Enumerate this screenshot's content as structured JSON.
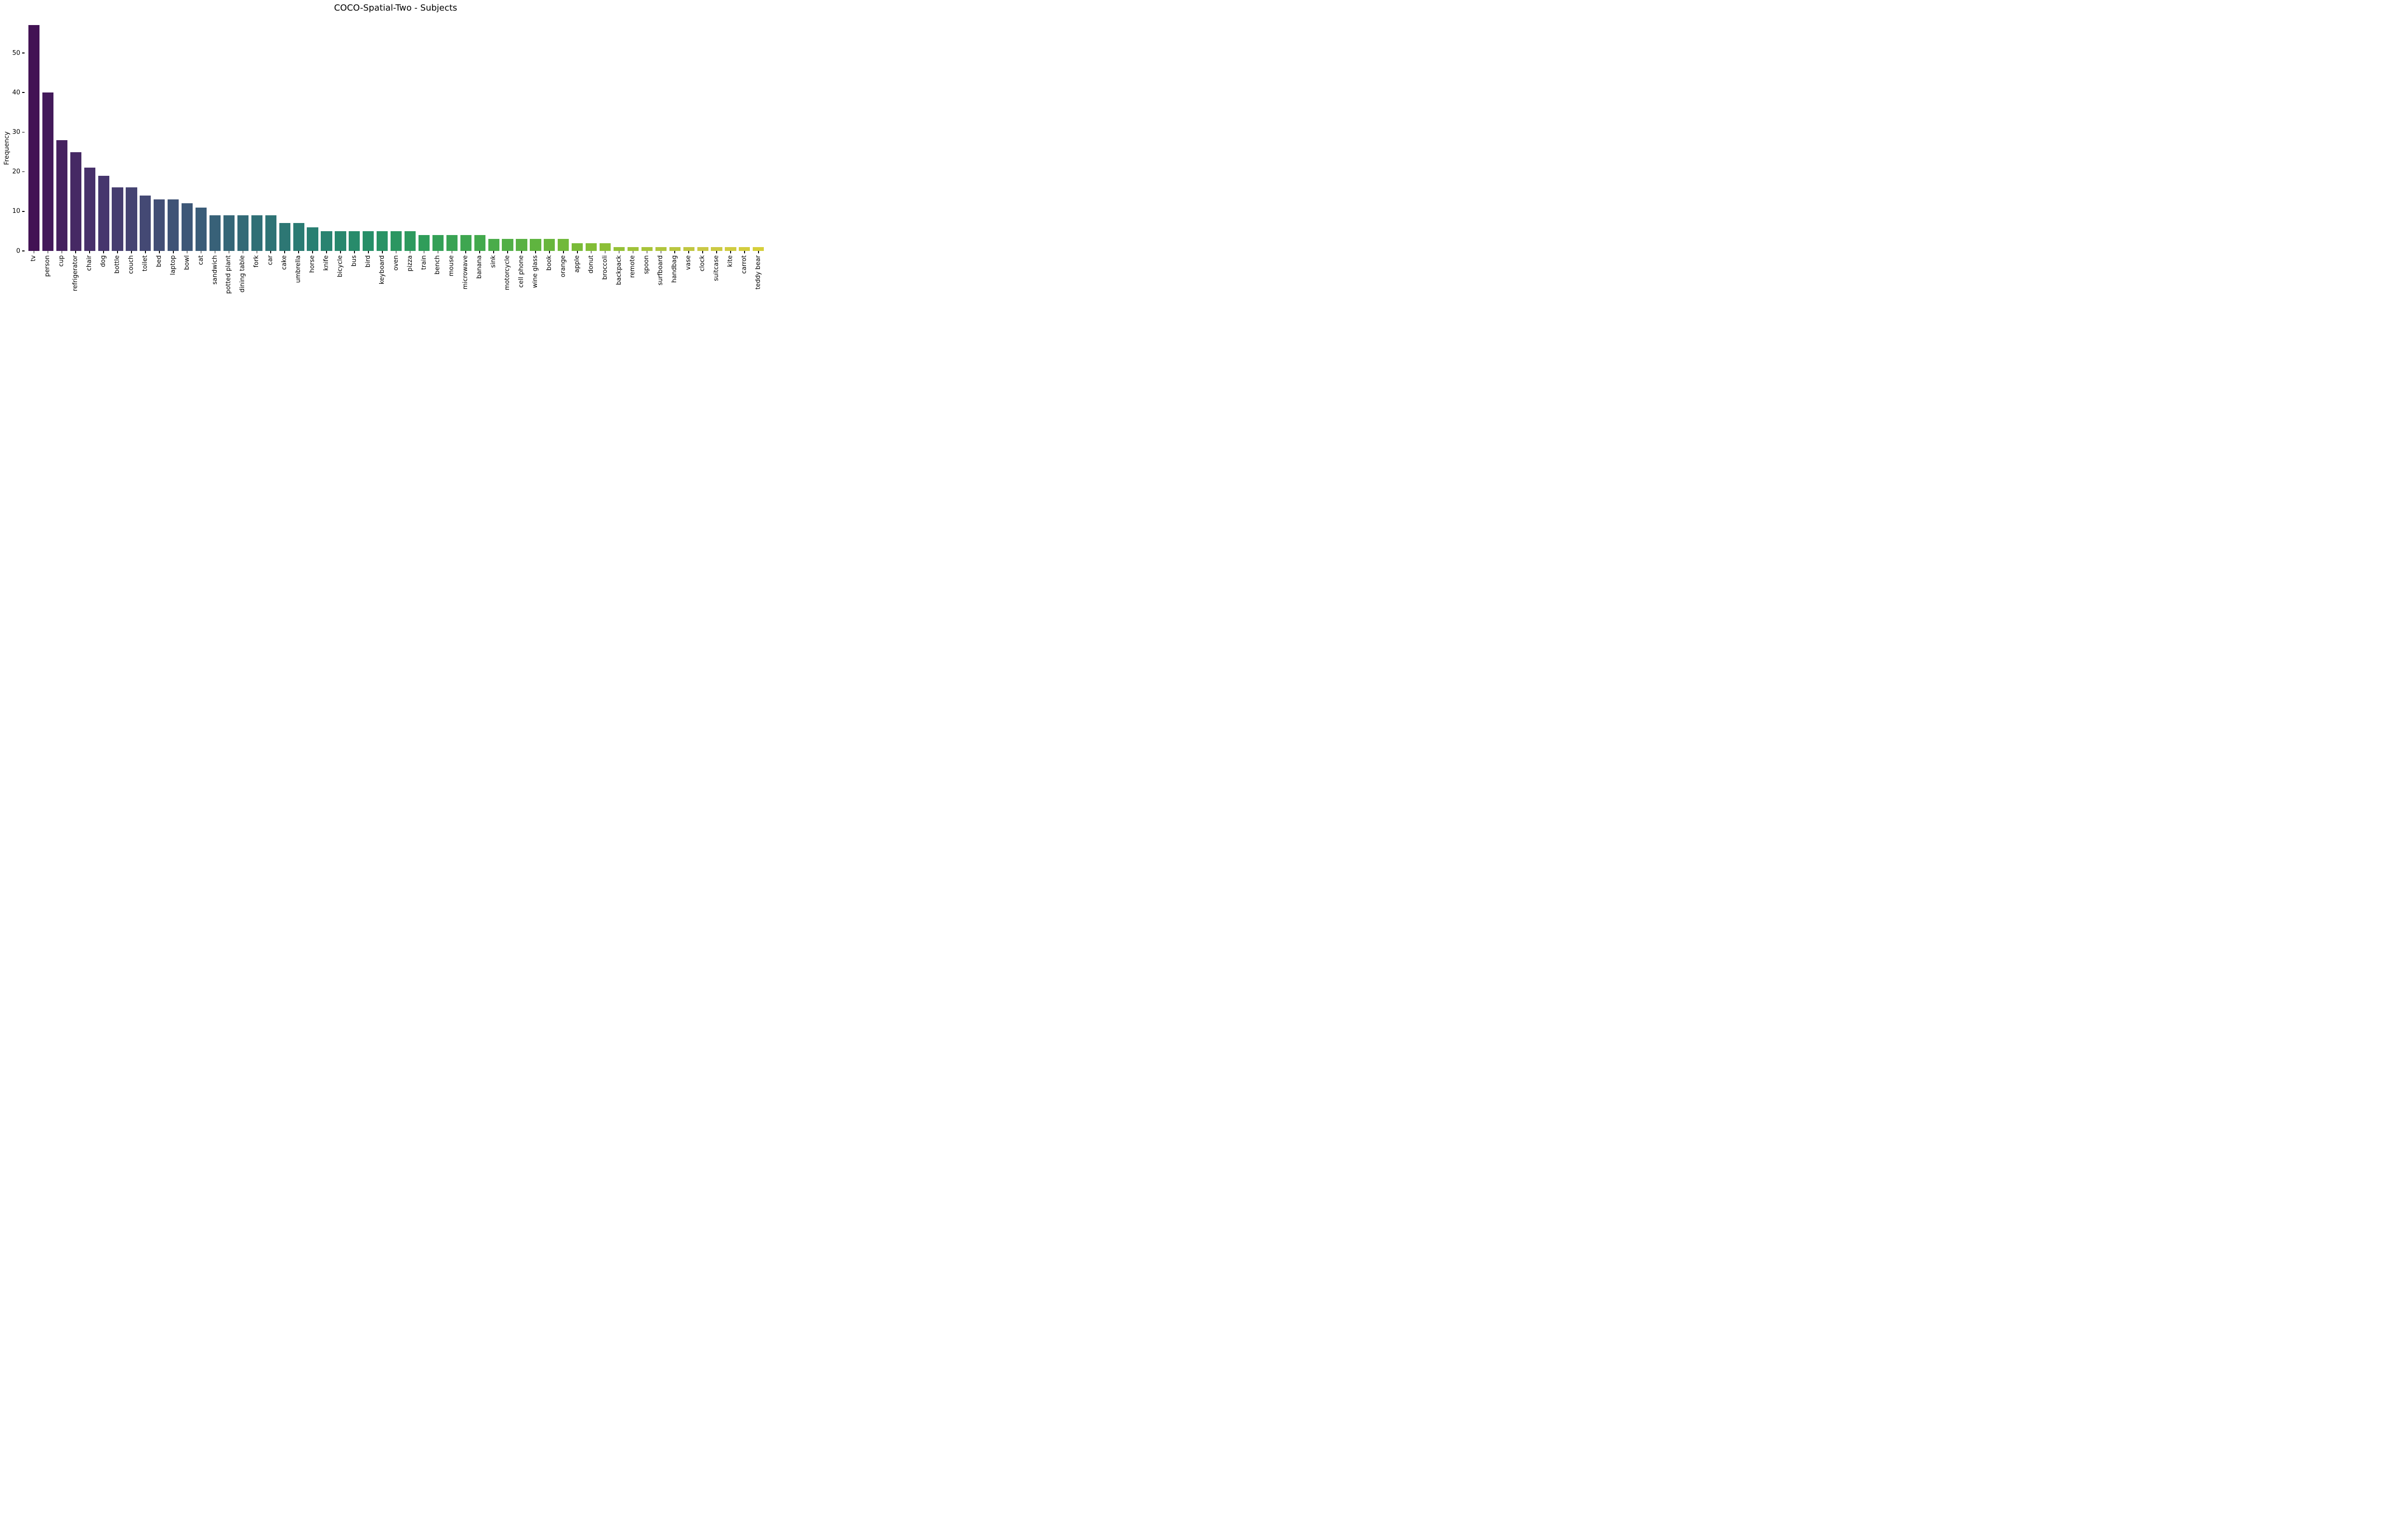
{
  "chart_data": {
    "type": "bar",
    "title": "COCO-Spatial-Two - Subjects",
    "xlabel": "",
    "ylabel": "Frequency",
    "categories": [
      "tv",
      "person",
      "cup",
      "refrigerator",
      "chair",
      "dog",
      "bottle",
      "couch",
      "toilet",
      "bed",
      "laptop",
      "bowl",
      "cat",
      "sandwich",
      "potted plant",
      "dining table",
      "fork",
      "car",
      "cake",
      "umbrella",
      "horse",
      "knife",
      "bicycle",
      "bus",
      "bird",
      "keyboard",
      "oven",
      "pizza",
      "train",
      "bench",
      "mouse",
      "microwave",
      "banana",
      "sink",
      "motorcycle",
      "cell phone",
      "wine glass",
      "book",
      "orange",
      "apple",
      "donut",
      "broccoli",
      "backpack",
      "remote",
      "spoon",
      "surfboard",
      "handbag",
      "vase",
      "clock",
      "suitcase",
      "kite",
      "carrot",
      "teddy bear"
    ],
    "values": [
      57,
      40,
      28,
      25,
      21,
      19,
      16,
      16,
      14,
      13,
      13,
      12,
      11,
      9,
      9,
      9,
      9,
      9,
      7,
      7,
      6,
      5,
      5,
      5,
      5,
      5,
      5,
      5,
      4,
      4,
      4,
      4,
      4,
      3,
      3,
      3,
      3,
      3,
      3,
      2,
      2,
      2,
      1,
      1,
      1,
      1,
      1,
      1,
      1,
      1,
      1,
      1,
      1
    ],
    "colors": [
      "#421254",
      "#431a5a",
      "#45215f",
      "#462964",
      "#47306a",
      "#46366d",
      "#463d6f",
      "#454372",
      "#444974",
      "#424e75",
      "#3f5376",
      "#3d5777",
      "#3a5c78",
      "#386178",
      "#356677",
      "#336a77",
      "#306f76",
      "#2e7375",
      "#2d7774",
      "#2b7b73",
      "#297f72",
      "#298370",
      "#28876d",
      "#288b6b",
      "#278f68",
      "#299365",
      "#2b9661",
      "#2d9a5e",
      "#2f9d5a",
      "#34a057",
      "#39a354",
      "#3ea650",
      "#43a94d",
      "#4aac4a",
      "#51af46",
      "#58b143",
      "#5fb43f",
      "#68b63d",
      "#71b93b",
      "#79bb38",
      "#82bd36",
      "#8cbf37",
      "#95c138",
      "#9fc239",
      "#a8c43a",
      "#b0c53d",
      "#b9c640",
      "#c1c742",
      "#c9c845",
      "#ccca43",
      "#d0cc40",
      "#d3cd3e",
      "#d6cf3b"
    ],
    "yticks": [
      0,
      10,
      20,
      30,
      40,
      50
    ],
    "ylim": [
      0,
      58.5
    ],
    "grid": false,
    "legend": "none",
    "palette": "viridis",
    "bar_color_low": "#421254",
    "bar_color_high": "#d6cf3b"
  }
}
